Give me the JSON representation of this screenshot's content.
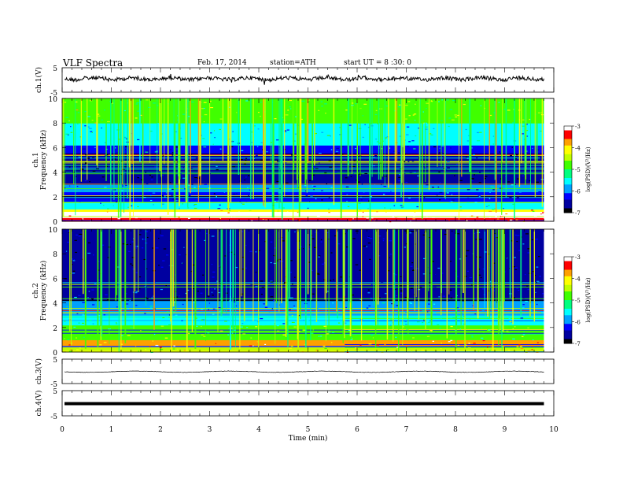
{
  "header": {
    "title": "VLF  Spectra",
    "date": "Feb. 17, 2014",
    "station": "station=ATH",
    "start": "start  UT  =   8 :30: 0"
  },
  "colors": {
    "colormap": [
      "#000000",
      "#0000a0",
      "#0000ff",
      "#00a0ff",
      "#00ffff",
      "#00ff80",
      "#40ff00",
      "#c0ff00",
      "#ffff00",
      "#ffa000",
      "#ff0000",
      "#ffffff"
    ],
    "trace": "#000000"
  },
  "chart_data": [
    {
      "type": "line",
      "name": "ch1-waveform",
      "ylabel": "ch.1(V)",
      "ylim": [
        -5,
        5
      ],
      "yticks": [
        "5",
        "-5"
      ],
      "xlim": [
        0,
        10
      ],
      "x": [
        0,
        0.5,
        1,
        1.5,
        2,
        2.5,
        3,
        3.5,
        4,
        4.5,
        5,
        5.5,
        6,
        6.5,
        7,
        7.5,
        8,
        8.5,
        9,
        9.5,
        9.8
      ],
      "y": [
        0.3,
        0.0,
        0.2,
        -0.1,
        0.3,
        0.1,
        0.4,
        0.0,
        0.2,
        0.1,
        0.3,
        0.2,
        0.0,
        0.3,
        0.1,
        0.2,
        0.0,
        0.3,
        0.1,
        0.2,
        0.1
      ]
    },
    {
      "type": "heatmap",
      "name": "ch1-spectrogram",
      "ylabel": "ch.1\nFrequency  (kHz)",
      "ylim": [
        0,
        10
      ],
      "yticks": [
        "0",
        "2",
        "4",
        "6",
        "8",
        "10"
      ],
      "xlim": [
        0,
        10
      ],
      "data_end_min": 9.8,
      "colorbar": {
        "label": "log(PSD)(V²/Hz)",
        "range": [
          -7,
          -3
        ],
        "ticks": [
          "-3",
          "-4",
          "-5",
          "-6",
          "-7"
        ]
      },
      "bands_khz": [
        {
          "from": 0,
          "to": 0.3,
          "level": -3.4
        },
        {
          "from": 0.3,
          "to": 0.8,
          "level": -3.0
        },
        {
          "from": 0.8,
          "to": 1.0,
          "level": -4.2
        },
        {
          "from": 1.0,
          "to": 1.6,
          "level": -5.6
        },
        {
          "from": 1.6,
          "to": 2.4,
          "level": -6.2
        },
        {
          "from": 2.4,
          "to": 3.0,
          "level": -6.0
        },
        {
          "from": 3.0,
          "to": 5.6,
          "level": -6.8
        },
        {
          "from": 5.6,
          "to": 6.2,
          "level": -6.1
        },
        {
          "from": 6.2,
          "to": 8.0,
          "level": -5.6
        },
        {
          "from": 8.0,
          "to": 10.0,
          "level": -4.7
        }
      ]
    },
    {
      "type": "heatmap",
      "name": "ch2-spectrogram",
      "ylabel": "ch.2\nFrequency  (kHz)",
      "ylim": [
        0,
        10
      ],
      "yticks": [
        "0",
        "2",
        "4",
        "6",
        "8",
        "10"
      ],
      "xlim": [
        0,
        10
      ],
      "data_end_min": 9.8,
      "colorbar": {
        "label": "log(PSD)(V²/Hz)",
        "range": [
          -7,
          -3
        ],
        "ticks": [
          "-3",
          "-4",
          "-5",
          "-6",
          "-7"
        ]
      },
      "bands_khz": [
        {
          "from": 0,
          "to": 0.4,
          "level": -4.3
        },
        {
          "from": 0.4,
          "to": 1.0,
          "level": -3.6
        },
        {
          "from": 1.0,
          "to": 2.2,
          "level": -4.9
        },
        {
          "from": 2.2,
          "to": 3.0,
          "level": -5.4
        },
        {
          "from": 3.0,
          "to": 4.2,
          "level": -5.9
        },
        {
          "from": 4.2,
          "to": 6.0,
          "level": -6.5
        },
        {
          "from": 6.0,
          "to": 10.0,
          "level": -6.7
        }
      ]
    },
    {
      "type": "line",
      "name": "ch3-waveform",
      "ylabel": "ch.3(V)",
      "ylim": [
        -5,
        5
      ],
      "yticks": [
        "5",
        "-5"
      ],
      "xlim": [
        0,
        10
      ],
      "x": [
        0,
        1,
        2,
        3,
        4,
        5,
        6,
        7,
        8,
        9,
        9.8
      ],
      "y": [
        0.2,
        0.1,
        0.2,
        0.1,
        0.2,
        0.1,
        0.2,
        0.1,
        0.2,
        0.1,
        0.2
      ]
    },
    {
      "type": "line",
      "name": "ch4-waveform",
      "ylabel": "ch.4(V)",
      "ylim": [
        -5,
        5
      ],
      "yticks": [
        "5",
        "-5"
      ],
      "xlim": [
        0,
        10
      ],
      "x": [
        0,
        9.8
      ],
      "y": [
        0,
        0
      ]
    }
  ],
  "xaxis": {
    "label": "Time  (min)",
    "ticks": [
      "0",
      "1",
      "2",
      "3",
      "4",
      "5",
      "6",
      "7",
      "8",
      "9",
      "10"
    ]
  }
}
